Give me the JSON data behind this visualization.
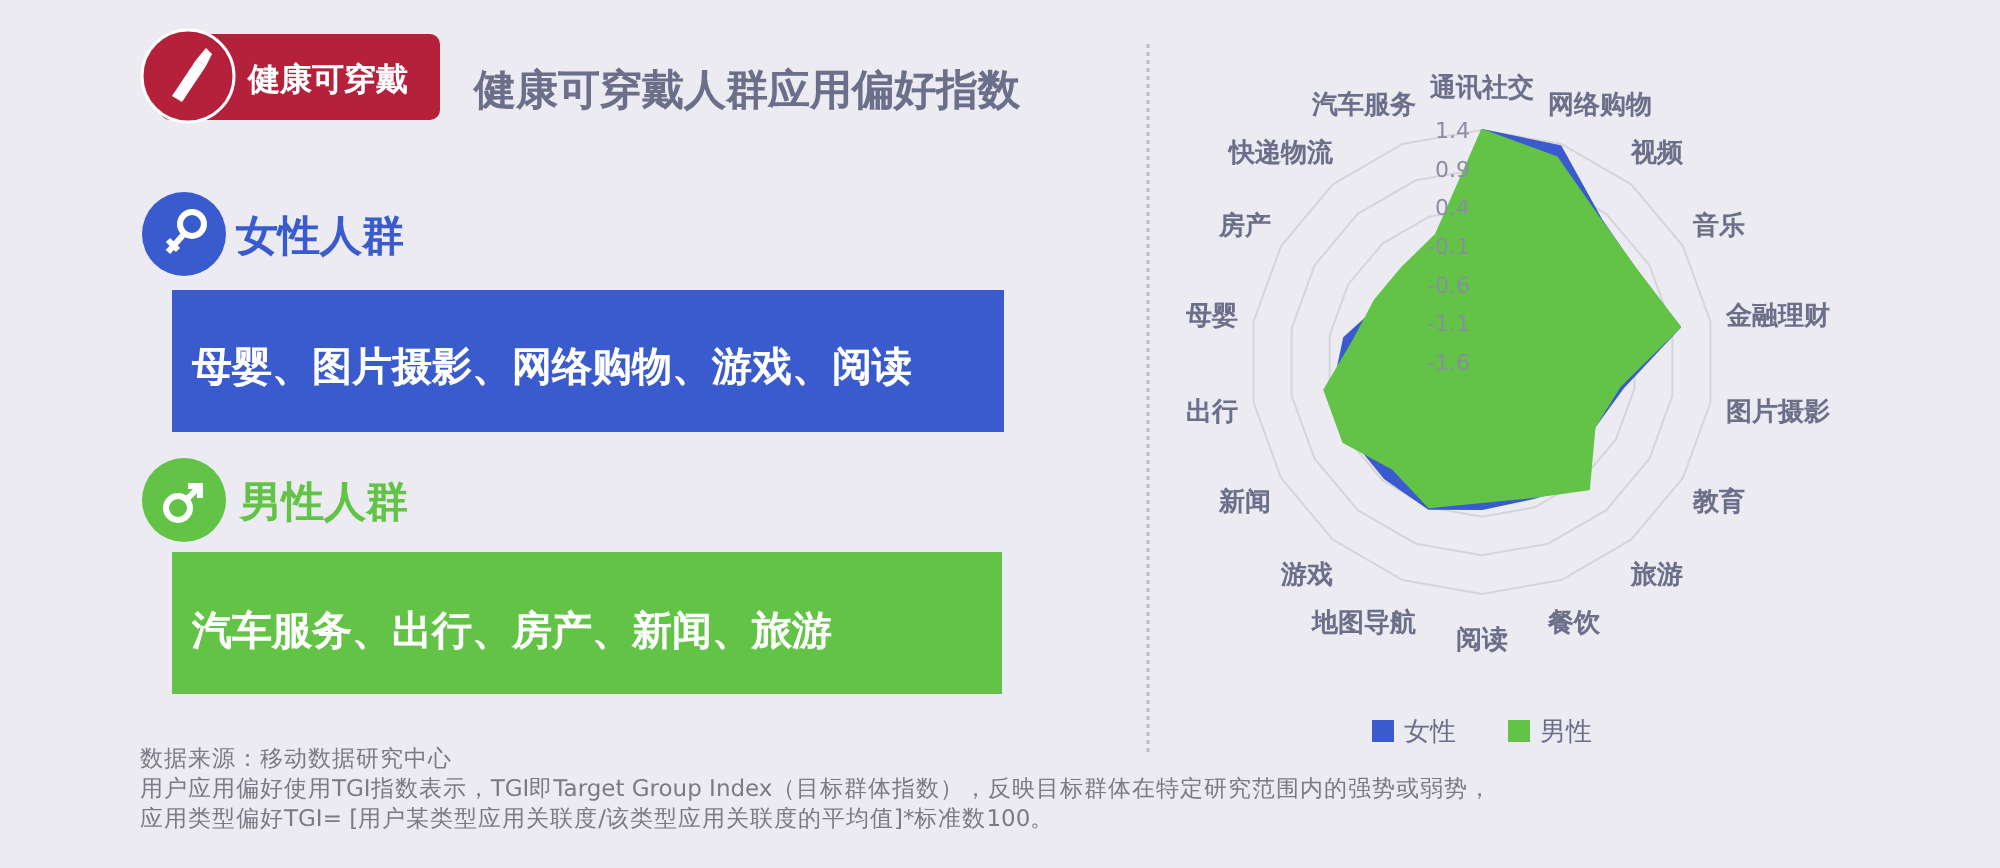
{
  "chart_data": [
    {
      "type": "other",
      "title": "健康可穿戴人群应用偏好指数",
      "annotations": [
        "健康可穿戴",
        "女性人群",
        "母婴、图片摄影、网络购物、游戏、阅读",
        "男性人群",
        "汽车服务、出行、房产、新闻、旅游",
        "数据来源：移动数据研究中心",
        "用户应用偏好使用TGI指数表示，TGI即Target Group Index（目标群体指数），反映目标群体在特定研究范围内的强势或弱势，",
        "应用类型偏好TGI= [用户某类型应用关联度/该类型应用关联度的平均值]*标准数100。"
      ]
    },
    {
      "type": "radar",
      "categories": [
        "通讯社交",
        "网络购物",
        "视频",
        "音乐",
        "金融理财",
        "图片摄影",
        "教育",
        "旅游",
        "餐饮",
        "阅读",
        "地图导航",
        "游戏",
        "新闻",
        "出行",
        "母婴",
        "房产",
        "快递物流",
        "汽车服务"
      ],
      "ylim": [
        -1.6,
        1.4
      ],
      "yticks": [
        1.4,
        0.9,
        0.4,
        -0.1,
        -0.6,
        -1.1,
        -1.6
      ],
      "legend": "bottom",
      "series": [
        {
          "name": "女性",
          "color": "#3a5bcd",
          "values": [
            1.4,
            1.37,
            0.8,
            0.72,
            1.0,
            0.26,
            0.08,
            0.45,
            0.28,
            0.3,
            0.42,
            0.36,
            0.35,
            0.35,
            0.21,
            -0.1,
            -0.05,
            0.0
          ]
        },
        {
          "name": "男性",
          "color": "#62c346",
          "values": [
            1.4,
            1.22,
            0.79,
            0.73,
            1.0,
            0.21,
            0.08,
            0.55,
            0.26,
            0.21,
            0.4,
            0.2,
            0.47,
            0.47,
            0.08,
            0.0,
            0.0,
            0.15
          ]
        }
      ]
    }
  ]
}
